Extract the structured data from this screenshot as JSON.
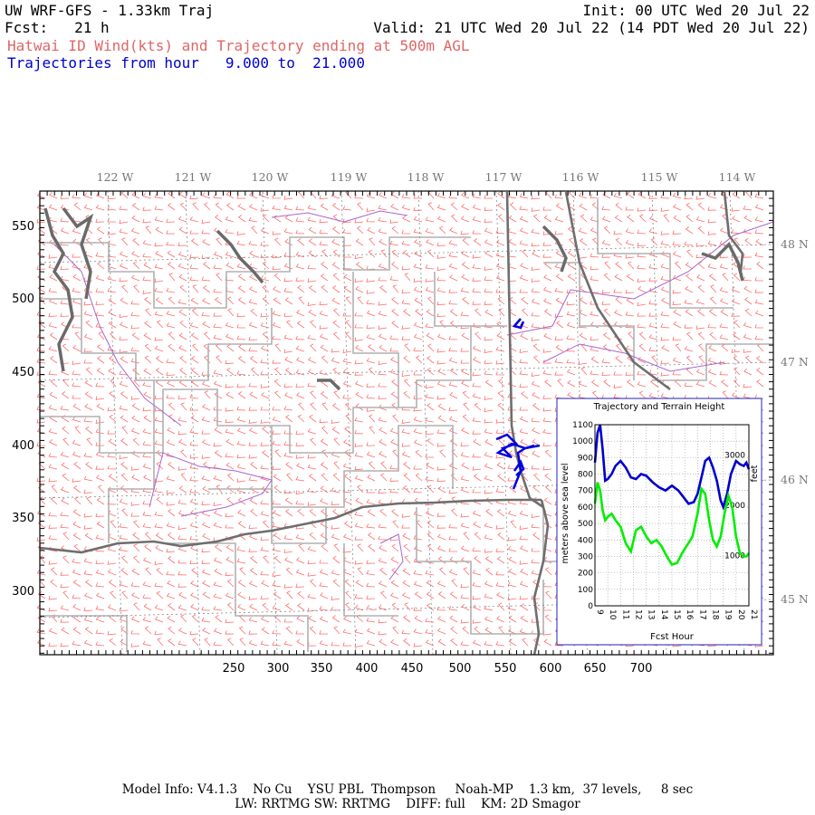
{
  "header": {
    "model_title": "UW WRF-GFS - 1.33km Traj",
    "init": "Init: 00 UTC Wed 20 Jul 22",
    "fcst": "Fcst:   21 h",
    "valid": "Valid: 21 UTC Wed 20 Jul 22 (14 PDT Wed 20 Jul 22)",
    "subtitle_red": "Hatwai ID Wind(kts) and Trajectory ending at 500m AGL",
    "subtitle_blue": "Trajectories from hour   9.000 to  21.000"
  },
  "map": {
    "lon_labels": [
      "122 W",
      "121 W",
      "120 W",
      "119 W",
      "118 W",
      "117 W",
      "116 W",
      "115 W",
      "114 W"
    ],
    "lat_labels": [
      "48 N",
      "47 N",
      "46 N",
      "45 N"
    ],
    "x_ticks": [
      "250",
      "300",
      "350",
      "400",
      "450",
      "500",
      "550",
      "600",
      "650",
      "700"
    ],
    "y_ticks": [
      "550",
      "500",
      "450",
      "400",
      "350",
      "300"
    ],
    "colors": {
      "wind_barbs": "#ff6b6b",
      "trajectory": "#0000dd",
      "state_borders": "#666666",
      "county_borders": "#aaaaaa",
      "water": "#9966cc"
    }
  },
  "inset": {
    "title": "Trajectory and Terrain Height",
    "xlabel": "Fcst Hour",
    "ylabel_left": "meters above sea level",
    "ylabel_right": "feet",
    "y_ticks": [
      "0",
      "100",
      "200",
      "300",
      "400",
      "500",
      "600",
      "700",
      "800",
      "900",
      "1000",
      "1100"
    ],
    "x_ticks": [
      "9",
      "10",
      "11",
      "12",
      "13",
      "14",
      "15",
      "16",
      "17",
      "18",
      "19",
      "20",
      "21"
    ],
    "feet_ticks": [
      "1000",
      "2000",
      "3000"
    ]
  },
  "chart_data": {
    "type": "line",
    "title": "Trajectory and Terrain Height",
    "xlabel": "Fcst Hour",
    "ylabel": "meters above sea level",
    "xlim": [
      9,
      21
    ],
    "ylim": [
      0,
      1100
    ],
    "grid": true,
    "series": [
      {
        "color": "#0000cc",
        "x": [
          9.0,
          9.2,
          9.4,
          9.6,
          9.8,
          10.0,
          10.3,
          10.6,
          11.0,
          11.4,
          11.8,
          12.2,
          12.6,
          13.0,
          13.5,
          14.0,
          14.5,
          15.0,
          15.5,
          16.0,
          16.3,
          16.7,
          17.0,
          17.3,
          17.6,
          17.9,
          18.2,
          18.5,
          18.8,
          19.0,
          19.3,
          19.6,
          20.0,
          20.3,
          20.6,
          20.8,
          21.0
        ],
        "y": [
          870,
          1050,
          1100,
          950,
          760,
          770,
          800,
          850,
          880,
          840,
          780,
          770,
          800,
          790,
          750,
          720,
          700,
          730,
          700,
          650,
          620,
          630,
          680,
          780,
          880,
          900,
          840,
          760,
          640,
          600,
          680,
          800,
          880,
          860,
          850,
          870,
          830
        ]
      },
      {
        "color": "#00ee00",
        "x": [
          9.0,
          9.2,
          9.4,
          9.6,
          9.8,
          10.0,
          10.3,
          10.6,
          11.0,
          11.4,
          11.8,
          12.2,
          12.6,
          13.0,
          13.4,
          13.8,
          14.2,
          14.6,
          15.0,
          15.4,
          15.8,
          16.2,
          16.6,
          17.0,
          17.3,
          17.6,
          17.9,
          18.2,
          18.5,
          18.8,
          19.1,
          19.4,
          19.7,
          20.0,
          20.3,
          20.6,
          20.8,
          21.0
        ],
        "y": [
          620,
          750,
          700,
          580,
          520,
          540,
          560,
          520,
          480,
          380,
          330,
          460,
          480,
          420,
          380,
          400,
          360,
          300,
          250,
          260,
          320,
          370,
          420,
          560,
          710,
          680,
          520,
          400,
          360,
          420,
          560,
          670,
          600,
          420,
          320,
          300,
          300,
          320
        ]
      }
    ]
  },
  "footer": {
    "line1": "Model Info: V4.1.3    No Cu    YSU PBL  Thompson     Noah-MP    1.3 km,  37 levels,     8 sec",
    "line2": "LW: RRTMG SW: RRTMG    DIFF: full    KM: 2D Smagor"
  }
}
